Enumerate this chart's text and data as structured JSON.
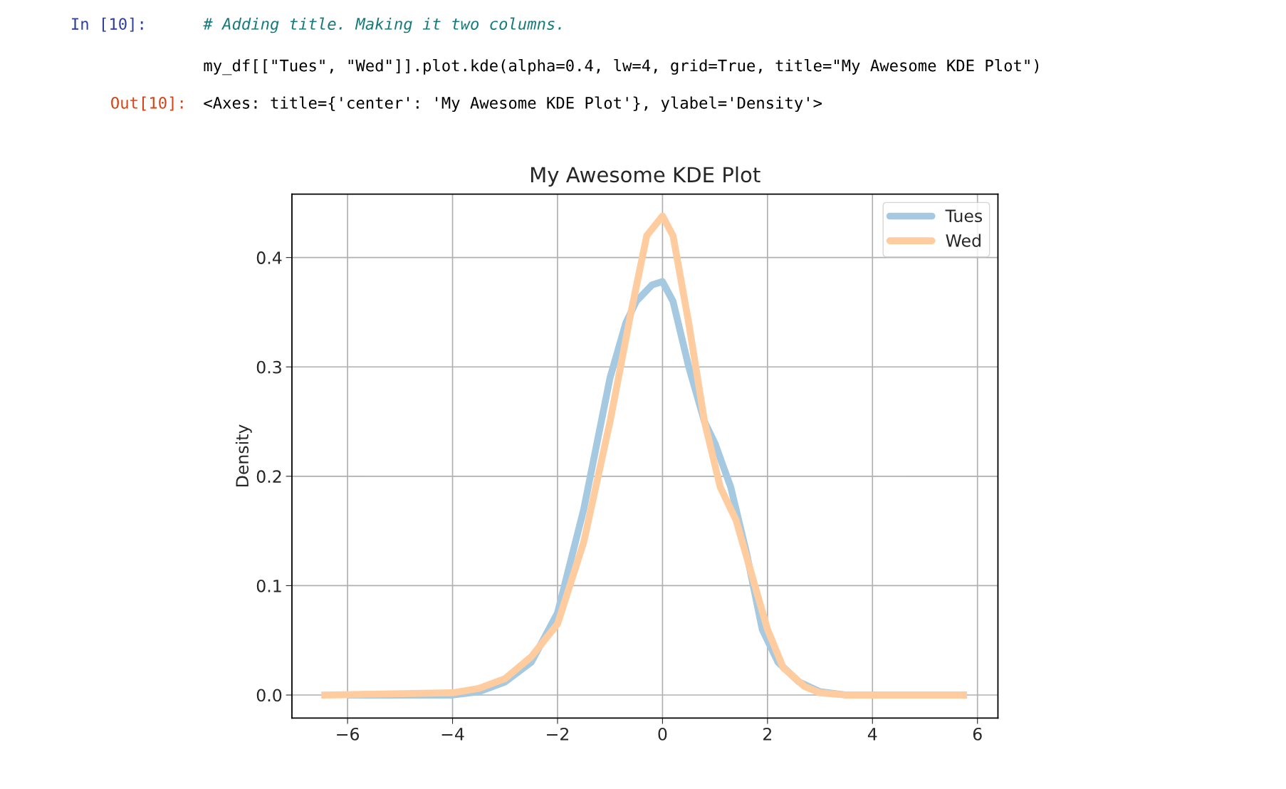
{
  "chart_data": {
    "type": "line",
    "title": "My Awesome KDE Plot",
    "ylabel": "Density",
    "annotations": [
      "In [10]:",
      "# Adding title. Making it two columns.",
      "my_df[[\"Tues\", \"Wed\"]].plot.kde(alpha=0.4, lw=4, grid=True, title=\"My Awesome KDE Plot\")",
      "Out[10]:",
      "<Axes: title={'center': 'My Awesome KDE Plot'}, ylabel='Density'>"
    ],
    "series": [
      {
        "name": "Tues",
        "color": "#a5c9e1",
        "x": [
          -6,
          -4,
          -3.5,
          -3,
          -2.5,
          -2,
          -1.5,
          -1,
          -0.7,
          -0.5,
          -0.2,
          0,
          0.2,
          0.5,
          0.8,
          1.0,
          1.3,
          1.6,
          1.9,
          2.2,
          2.6,
          3,
          3.5,
          5.8
        ],
        "values": [
          0,
          0,
          0.003,
          0.012,
          0.03,
          0.075,
          0.17,
          0.29,
          0.34,
          0.36,
          0.375,
          0.378,
          0.36,
          0.3,
          0.25,
          0.23,
          0.19,
          0.13,
          0.06,
          0.03,
          0.012,
          0.003,
          0,
          0
        ]
      },
      {
        "name": "Wed",
        "color": "#ffcc9f",
        "x": [
          -6.5,
          -4,
          -3.5,
          -3,
          -2.5,
          -2,
          -1.5,
          -1,
          -0.6,
          -0.3,
          0,
          0.2,
          0.5,
          0.8,
          1.1,
          1.4,
          1.7,
          2,
          2.3,
          2.7,
          3,
          3.5,
          5.8
        ],
        "values": [
          0,
          0.002,
          0.006,
          0.015,
          0.035,
          0.065,
          0.14,
          0.25,
          0.35,
          0.42,
          0.438,
          0.42,
          0.34,
          0.25,
          0.19,
          0.16,
          0.11,
          0.06,
          0.025,
          0.008,
          0.002,
          0,
          0
        ]
      }
    ],
    "xlim": [
      -7.06,
      6.39
    ],
    "ylim": [
      -0.021,
      0.458
    ],
    "xticks": [
      {
        "value": -6,
        "label": "−6"
      },
      {
        "value": -4,
        "label": "−4"
      },
      {
        "value": -2,
        "label": "−2"
      },
      0,
      2,
      4,
      6
    ],
    "yticks": [
      {
        "value": 0,
        "label": "0.0"
      },
      0.1,
      0.2,
      0.3,
      0.4
    ],
    "grid": true,
    "legend": "top right",
    "marker": "none",
    "line_style": "solid"
  }
}
